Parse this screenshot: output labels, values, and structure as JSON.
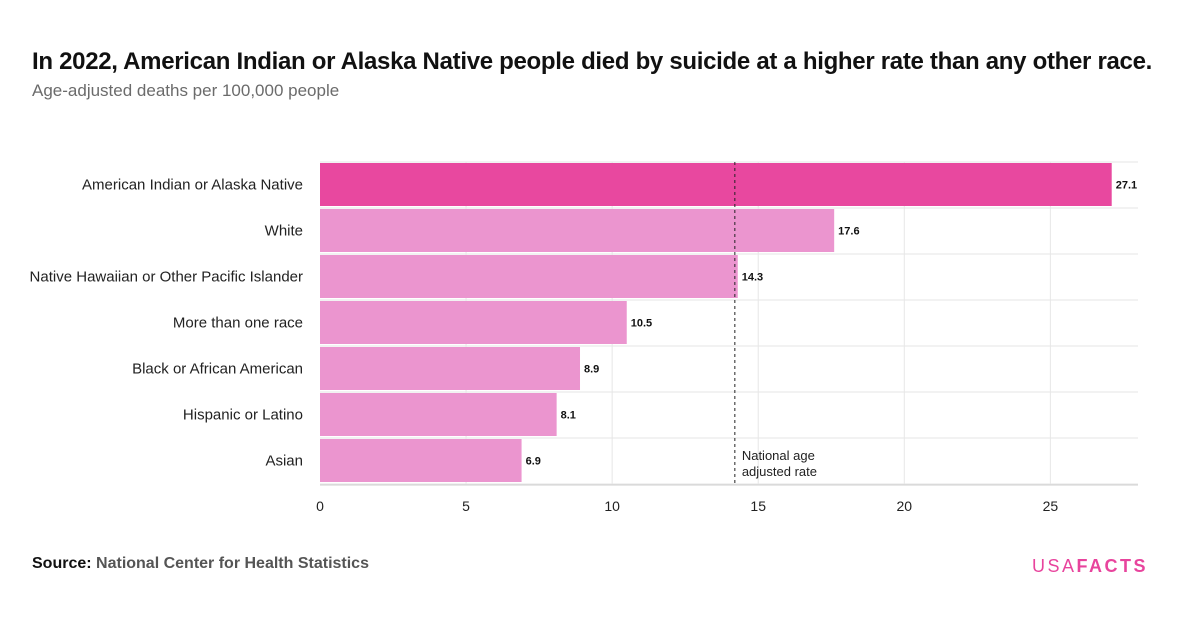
{
  "title": "In 2022, American Indian or Alaska Native people died by suicide at a higher rate than any other race.",
  "subtitle": "Age-adjusted deaths per 100,000 people",
  "source": {
    "label": "Source:",
    "value": "National Center for Health Statistics"
  },
  "logo": {
    "part1": "USA",
    "part2": "FACTS"
  },
  "colors": {
    "highlight": "#e8489f",
    "bar": "#eb95cf",
    "grid": "#e6e6e6",
    "reference": "#222222"
  },
  "chart_data": {
    "type": "bar",
    "orientation": "horizontal",
    "categories": [
      "American Indian or Alaska Native",
      "White",
      "Native Hawaiian or Other Pacific Islander",
      "More than one race",
      "Black or African American",
      "Hispanic or Latino",
      "Asian"
    ],
    "values": [
      27.1,
      17.6,
      14.3,
      10.5,
      8.9,
      8.1,
      6.9
    ],
    "value_labels": [
      "27.1",
      "17.6",
      "14.3",
      "10.5",
      "8.9",
      "8.1",
      "6.9"
    ],
    "highlight_category": "American Indian or Alaska Native",
    "xlim": [
      0,
      28
    ],
    "xticks": [
      0,
      5,
      10,
      15,
      20,
      25
    ],
    "grid": true,
    "reference_line": {
      "value": 14.2,
      "label_lines": [
        "National age",
        "adjusted rate"
      ]
    }
  }
}
